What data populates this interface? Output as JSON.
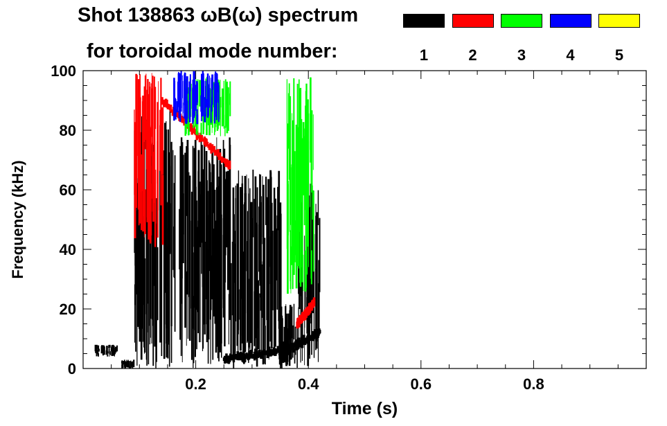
{
  "chart_data": {
    "type": "heatmap",
    "title": "Shot 138863 ωB(ω) spectrum",
    "subtitle": "for toroidal mode number:",
    "xlabel": "Time (s)",
    "ylabel": "Frequency (kHz)",
    "xlim": [
      0.0,
      1.0
    ],
    "ylim": [
      0,
      100
    ],
    "x_ticks": [
      0.2,
      0.4,
      0.6,
      0.8
    ],
    "x_tick_labels": [
      "0.2",
      "0.4",
      "0.6",
      "0.8"
    ],
    "y_ticks": [
      0,
      20,
      40,
      60,
      80,
      100
    ],
    "y_tick_labels": [
      "0",
      "20",
      "40",
      "60",
      "80",
      "100"
    ],
    "legend": {
      "placement": "top-right",
      "entries": [
        {
          "label": "1",
          "color": "#000000"
        },
        {
          "label": "2",
          "color": "#ff0000"
        },
        {
          "label": "3",
          "color": "#00ff00"
        },
        {
          "label": "4",
          "color": "#0000ff"
        },
        {
          "label": "5",
          "color": "#ffff00"
        }
      ]
    },
    "series": [
      {
        "name": "1",
        "color": "#000000",
        "regions": [
          {
            "t": [
              0.02,
              0.06
            ],
            "f": [
              4,
              8
            ]
          },
          {
            "t": [
              0.06,
              0.09
            ],
            "f": [
              0,
              3
            ]
          },
          {
            "t": [
              0.09,
              0.16
            ],
            "f": [
              0,
              88
            ]
          },
          {
            "t": [
              0.16,
              0.26
            ],
            "f": [
              0,
              78
            ]
          },
          {
            "t": [
              0.26,
              0.35
            ],
            "f": [
              0,
              67
            ]
          },
          {
            "t": [
              0.35,
              0.38
            ],
            "f": [
              0,
              22
            ]
          },
          {
            "t": [
              0.38,
              0.42
            ],
            "f": [
              0,
              65
            ]
          }
        ],
        "ridges": [
          {
            "t": [
              0.25,
              0.35
            ],
            "f": [
              3,
              6
            ]
          },
          {
            "t": [
              0.35,
              0.42
            ],
            "f": [
              5,
              12
            ]
          }
        ]
      },
      {
        "name": "2",
        "color": "#ff0000",
        "regions": [
          {
            "t": [
              0.09,
              0.14
            ],
            "f": [
              40,
              100
            ]
          }
        ],
        "ridges": [
          {
            "t": [
              0.14,
              0.26
            ],
            "f": [
              90,
              68
            ]
          },
          {
            "t": [
              0.38,
              0.41
            ],
            "f": [
              15,
              22
            ]
          }
        ]
      },
      {
        "name": "3",
        "color": "#00ff00",
        "regions": [
          {
            "t": [
              0.18,
              0.26
            ],
            "f": [
              78,
              98
            ]
          },
          {
            "t": [
              0.36,
              0.41
            ],
            "f": [
              25,
              98
            ]
          }
        ]
      },
      {
        "name": "4",
        "color": "#0000ff",
        "regions": [
          {
            "t": [
              0.16,
              0.24
            ],
            "f": [
              82,
              100
            ]
          }
        ]
      },
      {
        "name": "5",
        "color": "#ffff00",
        "regions": []
      }
    ]
  }
}
